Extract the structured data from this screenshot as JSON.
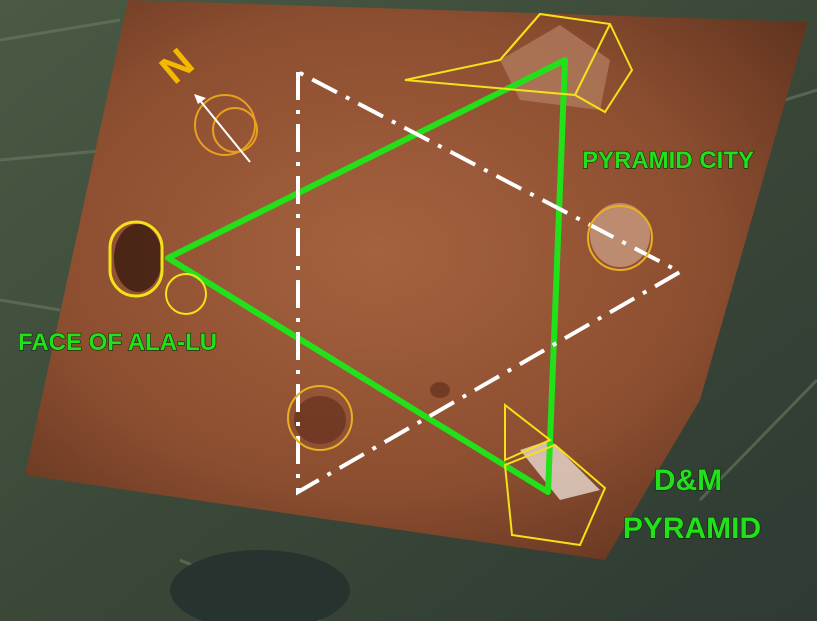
{
  "labels": {
    "compass": "N",
    "pyramid_city": "PYRAMID CITY",
    "face": "FACE OF ALA-LU",
    "dm_pyramid": [
      "D&M",
      "PYRAMID"
    ]
  }
}
